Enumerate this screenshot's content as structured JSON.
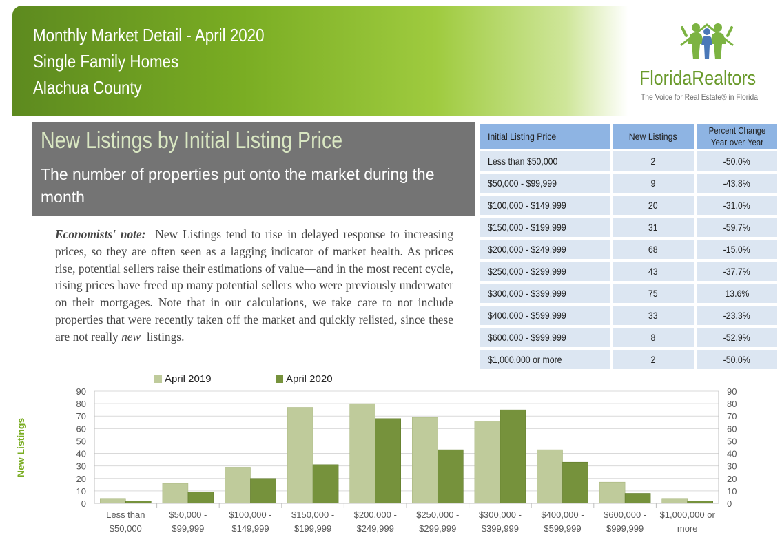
{
  "header": {
    "line1": "Monthly Market Detail - April 2020",
    "line2": "Single Family Homes",
    "line3": "Alachua County"
  },
  "logo": {
    "name": "FloridaRealtors",
    "tagline": "The Voice for Real Estate® in Florida",
    "icon": "people-house-icon"
  },
  "section": {
    "title": "New Listings by Initial Listing Price",
    "subtitle": "The number of properties put onto the market during the month"
  },
  "note": {
    "label": "Economists' note:",
    "body": "New Listings tend to rise in delayed response to increasing prices, so they are often seen as a lagging indicator of market health.  As prices rise, potential sellers raise their estimations of value—and in the most recent cycle, rising prices have freed up many potential sellers who were previously underwater on their mortgages.  Note that in our calculations, we take care to not include properties that were recently taken off the market and quickly relisted, since these are not really",
    "emph": "new",
    "tail": "listings."
  },
  "table": {
    "headers": [
      "Initial Listing Price",
      "New Listings",
      "Percent Change Year-over-Year"
    ],
    "rows": [
      {
        "price": "Less than $50,000",
        "listings": "2",
        "change": "-50.0%"
      },
      {
        "price": "$50,000 - $99,999",
        "listings": "9",
        "change": "-43.8%"
      },
      {
        "price": "$100,000 - $149,999",
        "listings": "20",
        "change": "-31.0%"
      },
      {
        "price": "$150,000 - $199,999",
        "listings": "31",
        "change": "-59.7%"
      },
      {
        "price": "$200,000 - $249,999",
        "listings": "68",
        "change": "-15.0%"
      },
      {
        "price": "$250,000 - $299,999",
        "listings": "43",
        "change": "-37.7%"
      },
      {
        "price": "$300,000 - $399,999",
        "listings": "75",
        "change": "13.6%"
      },
      {
        "price": "$400,000 - $599,999",
        "listings": "33",
        "change": "-23.3%"
      },
      {
        "price": "$600,000 - $999,999",
        "listings": "8",
        "change": "-52.9%"
      },
      {
        "price": "$1,000,000 or more",
        "listings": "2",
        "change": "-50.0%"
      }
    ]
  },
  "colors": {
    "header_green": "#7aad23",
    "title_box": "#747474",
    "table_header": "#8eb4e3",
    "table_cell": "#dce6f2",
    "series_2019": "#bfcb9b",
    "series_2020": "#76923c"
  },
  "chart_data": {
    "type": "bar",
    "ylabel": "New Listings",
    "ylim": [
      0,
      90
    ],
    "yticks": [
      0,
      10,
      20,
      30,
      40,
      50,
      60,
      70,
      80,
      90
    ],
    "legend_position": "top",
    "grid": true,
    "categories": [
      [
        "Less than",
        "$50,000"
      ],
      [
        "$50,000 -",
        "$99,999"
      ],
      [
        "$100,000 -",
        "$149,999"
      ],
      [
        "$150,000 -",
        "$199,999"
      ],
      [
        "$200,000 -",
        "$249,999"
      ],
      [
        "$250,000 -",
        "$299,999"
      ],
      [
        "$300,000 -",
        "$399,999"
      ],
      [
        "$400,000 -",
        "$599,999"
      ],
      [
        "$600,000 -",
        "$999,999"
      ],
      [
        "$1,000,000 or",
        "more"
      ]
    ],
    "series": [
      {
        "name": "April 2019",
        "color": "#bfcb9b",
        "values": [
          4,
          16,
          29,
          77,
          80,
          69,
          66,
          43,
          17,
          4
        ]
      },
      {
        "name": "April 2020",
        "color": "#76923c",
        "values": [
          2,
          9,
          20,
          31,
          68,
          43,
          75,
          33,
          8,
          2
        ]
      }
    ]
  }
}
